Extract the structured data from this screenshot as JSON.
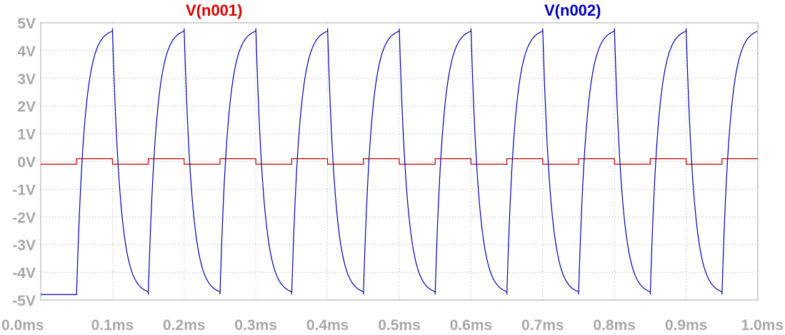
{
  "chart_data": {
    "type": "line",
    "title": "",
    "xlabel": "",
    "ylabel": "",
    "xlim": [
      0.0,
      1.0
    ],
    "ylim": [
      -5,
      5
    ],
    "x_unit": "ms",
    "y_unit": "V",
    "grid": true,
    "xticks": [
      "0.0ms",
      "0.1ms",
      "0.2ms",
      "0.3ms",
      "0.4ms",
      "0.5ms",
      "0.6ms",
      "0.7ms",
      "0.8ms",
      "0.9ms",
      "1.0ms"
    ],
    "yticks": [
      "5V",
      "4V",
      "3V",
      "2V",
      "1V",
      "0V",
      "-1V",
      "-2V",
      "-3V",
      "-4V",
      "-5V"
    ],
    "legend": [
      {
        "name": "V(n001)",
        "color": "#e00000"
      },
      {
        "name": "V(n002)",
        "color": "#0000c0"
      }
    ],
    "series": [
      {
        "name": "V(n001)",
        "color": "#c00000",
        "kind": "square",
        "high": 0.1,
        "low": -0.1,
        "start_low_until": 0.05,
        "period": 0.1,
        "x_end": 1.0
      },
      {
        "name": "V(n002)",
        "color": "#0000b0",
        "kind": "rc-response",
        "initial": -4.8,
        "start": 0.05,
        "period": 0.1,
        "amplitude": 4.8,
        "time_constant": 0.011,
        "x_end": 1.0
      }
    ]
  }
}
